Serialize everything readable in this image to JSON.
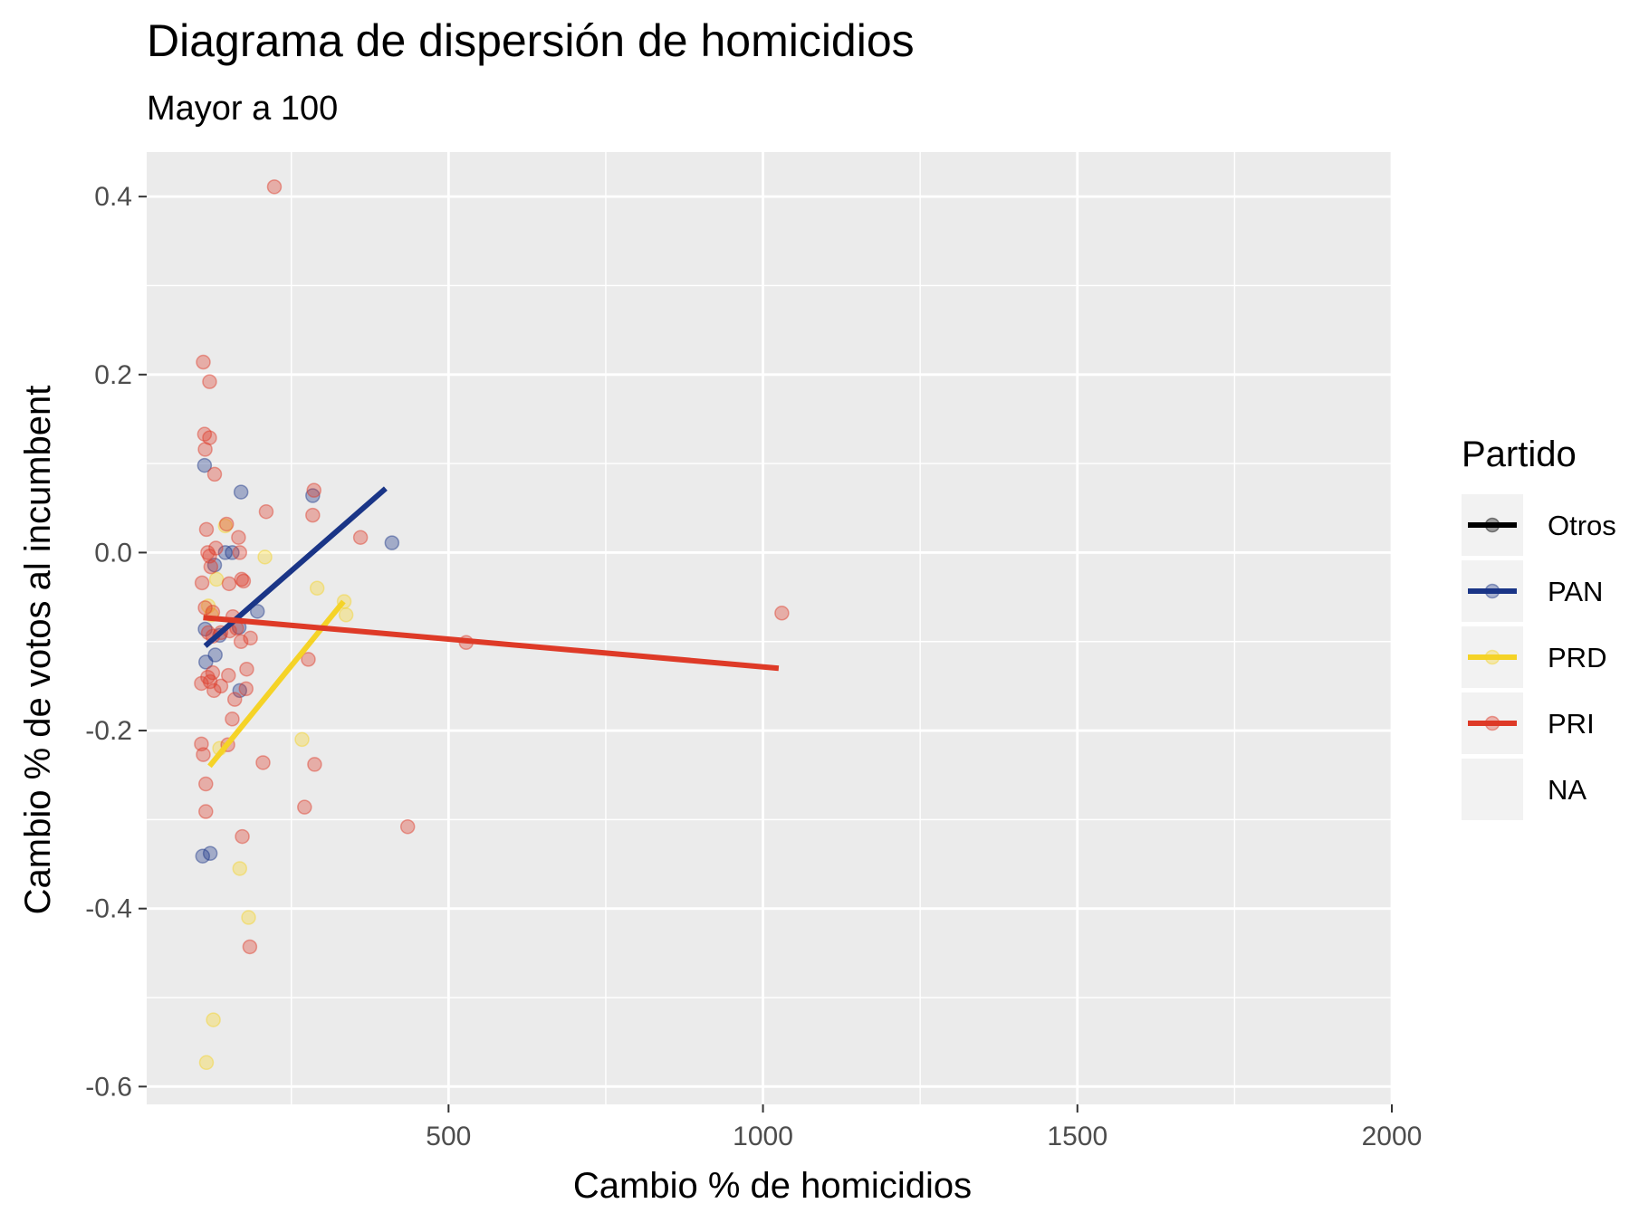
{
  "chart_data": {
    "type": "scatter",
    "title": "Diagrama de dispersión de homicidios",
    "subtitle": "Mayor a 100",
    "xlabel": "Cambio % de homicidios",
    "ylabel": "Cambio % de votos al incumbent",
    "xlim": [
      20,
      2000
    ],
    "ylim": [
      -0.62,
      0.45
    ],
    "x_ticks": [
      500,
      1000,
      1500,
      2000
    ],
    "x_tick_labels": [
      "500",
      "1000",
      "1500",
      "2000"
    ],
    "x_minor_ticks": [
      250,
      750,
      1250,
      1750
    ],
    "y_ticks": [
      -0.6,
      -0.4,
      -0.2,
      0.0,
      0.2,
      0.4
    ],
    "y_tick_labels": [
      "-0.6",
      "-0.4",
      "-0.2",
      "0.0",
      "0.2",
      "0.4"
    ],
    "y_minor_ticks": [
      -0.5,
      -0.3,
      -0.1,
      0.1,
      0.3
    ],
    "grid": true,
    "legend": {
      "title": "Partido",
      "position": "right",
      "entries": [
        "Otros",
        "PAN",
        "PRD",
        "PRI",
        "NA"
      ]
    },
    "colors": {
      "Otros": "#000000",
      "PAN": "#1a3587",
      "PRD": "#f5d327",
      "PRI": "#de3a27",
      "NA": "#ebebeb",
      "panel": "#ebebeb",
      "grid": "#ffffff"
    },
    "series": [
      {
        "name": "PAN",
        "points": [
          [
            112,
            0.098
          ],
          [
            113,
            -0.086
          ],
          [
            114,
            -0.123
          ],
          [
            109,
            -0.341
          ],
          [
            121,
            -0.338
          ],
          [
            129,
            -0.115
          ],
          [
            128,
            -0.014
          ],
          [
            136,
            -0.093
          ],
          [
            145,
            0.0
          ],
          [
            156,
            0.0
          ],
          [
            167,
            -0.084
          ],
          [
            168,
            -0.155
          ],
          [
            170,
            0.068
          ],
          [
            196,
            -0.066
          ],
          [
            284,
            0.064
          ],
          [
            410,
            0.011
          ]
        ],
        "trend": [
          [
            113,
            -0.105
          ],
          [
            400,
            0.072
          ]
        ]
      },
      {
        "name": "PRD",
        "points": [
          [
            118,
            -0.06
          ],
          [
            123,
            -0.07
          ],
          [
            131,
            -0.03
          ],
          [
            145,
            0.03
          ],
          [
            126,
            -0.525
          ],
          [
            115,
            -0.573
          ],
          [
            168,
            -0.355
          ],
          [
            182,
            -0.41
          ],
          [
            208,
            -0.005
          ],
          [
            267,
            -0.21
          ],
          [
            291,
            -0.04
          ],
          [
            334,
            -0.055
          ],
          [
            337,
            -0.07
          ],
          [
            136,
            -0.22
          ]
        ],
        "trend": [
          [
            120,
            -0.24
          ],
          [
            333,
            -0.055
          ]
        ]
      },
      {
        "name": "PRI",
        "points": [
          [
            110,
            0.214
          ],
          [
            120,
            0.192
          ],
          [
            112,
            0.133
          ],
          [
            120,
            0.129
          ],
          [
            113,
            0.116
          ],
          [
            128,
            0.088
          ],
          [
            115,
            0.026
          ],
          [
            130,
            0.005
          ],
          [
            117,
            0.0
          ],
          [
            120,
            -0.004
          ],
          [
            122,
            -0.016
          ],
          [
            147,
            0.032
          ],
          [
            151,
            -0.035
          ],
          [
            108,
            -0.034
          ],
          [
            113,
            -0.062
          ],
          [
            125,
            -0.067
          ],
          [
            166,
            0.017
          ],
          [
            168,
            0.0
          ],
          [
            171,
            -0.03
          ],
          [
            174,
            -0.032
          ],
          [
            157,
            -0.072
          ],
          [
            163,
            -0.085
          ],
          [
            118,
            -0.09
          ],
          [
            125,
            -0.094
          ],
          [
            138,
            -0.09
          ],
          [
            152,
            -0.088
          ],
          [
            170,
            -0.1
          ],
          [
            185,
            -0.096
          ],
          [
            117,
            -0.14
          ],
          [
            121,
            -0.145
          ],
          [
            125,
            -0.135
          ],
          [
            127,
            -0.155
          ],
          [
            138,
            -0.15
          ],
          [
            150,
            -0.138
          ],
          [
            160,
            -0.165
          ],
          [
            179,
            -0.131
          ],
          [
            178,
            -0.153
          ],
          [
            107,
            -0.147
          ],
          [
            156,
            -0.187
          ],
          [
            149,
            -0.216
          ],
          [
            107,
            -0.215
          ],
          [
            110,
            -0.227
          ],
          [
            114,
            -0.26
          ],
          [
            114,
            -0.291
          ],
          [
            205,
            -0.236
          ],
          [
            210,
            0.046
          ],
          [
            223,
            0.411
          ],
          [
            271,
            -0.286
          ],
          [
            277,
            -0.12
          ],
          [
            284,
            0.042
          ],
          [
            286,
            0.07
          ],
          [
            287,
            -0.238
          ],
          [
            172,
            -0.319
          ],
          [
            184,
            -0.443
          ],
          [
            360,
            0.017
          ],
          [
            435,
            -0.308
          ],
          [
            528,
            -0.101
          ],
          [
            1030,
            -0.068
          ]
        ],
        "trend": [
          [
            110,
            -0.073
          ],
          [
            1025,
            -0.13
          ]
        ]
      }
    ]
  }
}
